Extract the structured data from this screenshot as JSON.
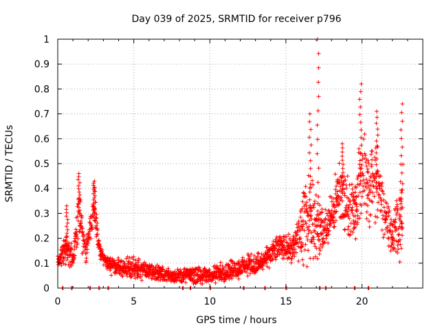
{
  "chart_data": {
    "type": "scatter",
    "title": "Day 039 of 2025, SRMTID for receiver p796",
    "xlabel": "GPS time / hours",
    "ylabel": "SRMTID / TECUs",
    "xlim": [
      0,
      24
    ],
    "ylim": [
      0,
      1
    ],
    "xticks": [
      "0",
      "5",
      "10",
      "15",
      "20"
    ],
    "yticks": [
      "0",
      "0.1",
      "0.2",
      "0.3",
      "0.4",
      "0.5",
      "0.6",
      "0.7",
      "0.8",
      "0.9",
      "1"
    ],
    "grid": true,
    "marker": "plus",
    "color": "#ff0000",
    "series": [
      {
        "name": "SRMTID",
        "profile": [
          {
            "x": 0.0,
            "y": 0.1,
            "spread": 0.03
          },
          {
            "x": 0.5,
            "y": 0.16,
            "spread": 0.07
          },
          {
            "x": 1.0,
            "y": 0.12,
            "spread": 0.05
          },
          {
            "x": 1.4,
            "y": 0.3,
            "spread": 0.12
          },
          {
            "x": 1.8,
            "y": 0.14,
            "spread": 0.06
          },
          {
            "x": 2.4,
            "y": 0.32,
            "spread": 0.1
          },
          {
            "x": 2.8,
            "y": 0.14,
            "spread": 0.03
          },
          {
            "x": 3.4,
            "y": 0.09,
            "spread": 0.04
          },
          {
            "x": 5.0,
            "y": 0.08,
            "spread": 0.05
          },
          {
            "x": 7.5,
            "y": 0.05,
            "spread": 0.03
          },
          {
            "x": 10.0,
            "y": 0.05,
            "spread": 0.04
          },
          {
            "x": 12.5,
            "y": 0.09,
            "spread": 0.05
          },
          {
            "x": 13.5,
            "y": 0.1,
            "spread": 0.05
          },
          {
            "x": 14.5,
            "y": 0.17,
            "spread": 0.05
          },
          {
            "x": 15.5,
            "y": 0.16,
            "spread": 0.07
          },
          {
            "x": 16.5,
            "y": 0.3,
            "spread": 0.22
          },
          {
            "x": 17.5,
            "y": 0.22,
            "spread": 0.1
          },
          {
            "x": 18.5,
            "y": 0.38,
            "spread": 0.14
          },
          {
            "x": 19.5,
            "y": 0.3,
            "spread": 0.14
          },
          {
            "x": 20.0,
            "y": 0.45,
            "spread": 0.22
          },
          {
            "x": 21.0,
            "y": 0.4,
            "spread": 0.2
          },
          {
            "x": 22.0,
            "y": 0.22,
            "spread": 0.1
          },
          {
            "x": 22.7,
            "y": 0.3,
            "spread": 0.22
          }
        ],
        "peaks": [
          {
            "x": 0.6,
            "y": 0.33
          },
          {
            "x": 1.4,
            "y": 0.46
          },
          {
            "x": 2.4,
            "y": 0.43
          },
          {
            "x": 16.6,
            "y": 0.7
          },
          {
            "x": 17.1,
            "y": 1.0
          },
          {
            "x": 18.7,
            "y": 0.58
          },
          {
            "x": 19.9,
            "y": 0.82
          },
          {
            "x": 21.0,
            "y": 0.71
          },
          {
            "x": 22.6,
            "y": 0.74
          }
        ],
        "zero_points": [
          0.3,
          0.9,
          2.1,
          2.7,
          3.3,
          8.2,
          8.7,
          10.0,
          12.2,
          13.6,
          15.0,
          17.2,
          17.6,
          19.5,
          20.4
        ]
      }
    ]
  }
}
